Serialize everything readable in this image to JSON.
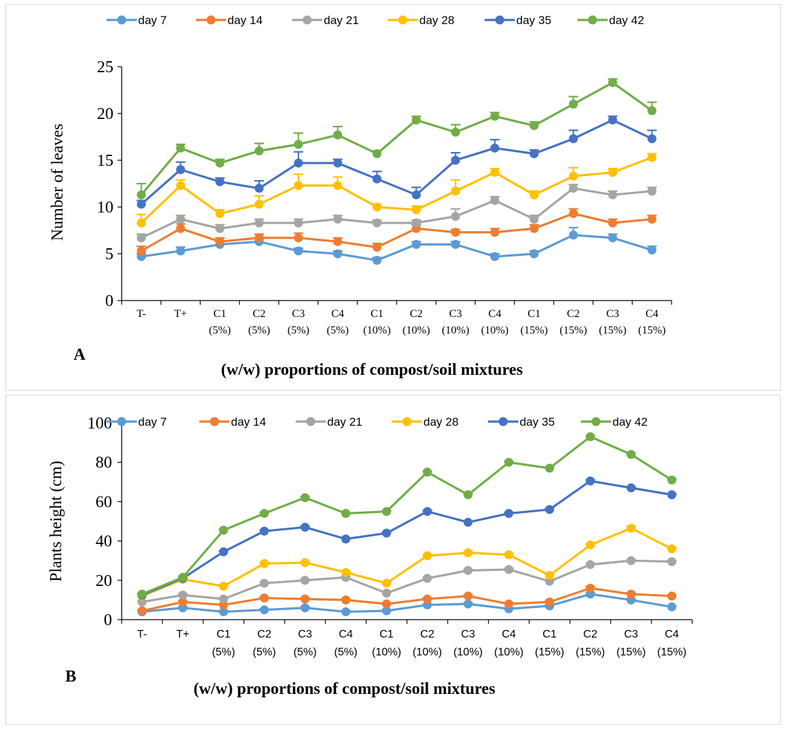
{
  "chart_data": [
    {
      "panel_label": "A",
      "type": "line",
      "title": "",
      "xlabel": "(w/w) proportions of compost/soil mixtures",
      "ylabel": "Number of leaves",
      "ylim": [
        0,
        25
      ],
      "yticks": [
        "0",
        "5",
        "10",
        "15",
        "20",
        "25"
      ],
      "categories": [
        "T-",
        "T+",
        "C1\n(5%)",
        "C2\n(5%)",
        "C3\n(5%)",
        "C4\n(5%)",
        "C1\n(10%)",
        "C2\n(10%)",
        "C3\n(10%)",
        "C4\n(10%)",
        "C1\n(15%)",
        "C2\n(15%)",
        "C3\n(15%)",
        "C4\n(15%)"
      ],
      "legend_position": "top",
      "error_bars": true,
      "grid": false,
      "series": [
        {
          "name": "day 7",
          "color": "#5B9BD5",
          "values": [
            4.7,
            5.3,
            6.0,
            6.3,
            5.3,
            5.0,
            4.3,
            6.0,
            6.0,
            4.7,
            5.0,
            7.0,
            6.7,
            5.4
          ],
          "errors": [
            0.3,
            0.4,
            0.3,
            0.3,
            0.3,
            0.3,
            0.3,
            0.3,
            0.3,
            0.3,
            0.3,
            0.8,
            0.4,
            0.4
          ]
        },
        {
          "name": "day 14",
          "color": "#ED7D31",
          "values": [
            5.3,
            7.7,
            6.3,
            6.7,
            6.7,
            6.3,
            5.7,
            7.7,
            7.3,
            7.3,
            7.7,
            9.3,
            8.3,
            8.7
          ],
          "errors": [
            0.5,
            0.5,
            0.4,
            0.4,
            0.5,
            0.4,
            0.4,
            0.4,
            0.3,
            0.4,
            0.4,
            0.5,
            0.4,
            0.4
          ]
        },
        {
          "name": "day 21",
          "color": "#A5A5A5",
          "values": [
            6.7,
            8.7,
            7.7,
            8.3,
            8.3,
            8.7,
            8.3,
            8.3,
            9.0,
            10.7,
            8.7,
            12.0,
            11.3,
            11.7
          ],
          "errors": [
            0.4,
            0.4,
            0.4,
            0.4,
            0.4,
            0.4,
            0.3,
            0.3,
            0.8,
            0.4,
            0.4,
            0.4,
            0.4,
            0.4
          ]
        },
        {
          "name": "day 28",
          "color": "#FFC000",
          "values": [
            8.3,
            12.3,
            9.3,
            10.3,
            12.3,
            12.3,
            10.0,
            9.7,
            11.7,
            13.7,
            11.3,
            13.3,
            13.7,
            15.3
          ],
          "errors": [
            0.9,
            0.6,
            0.4,
            0.9,
            1.2,
            0.9,
            0.3,
            0.4,
            1.2,
            0.4,
            0.4,
            0.9,
            0.4,
            0.4
          ]
        },
        {
          "name": "day 35",
          "color": "#4472C4",
          "values": [
            10.3,
            14.0,
            12.7,
            12.0,
            14.7,
            14.7,
            13.0,
            11.3,
            15.0,
            16.3,
            15.7,
            17.3,
            19.3,
            17.3
          ],
          "errors": [
            0.4,
            0.8,
            0.4,
            0.8,
            1.2,
            0.4,
            0.8,
            0.8,
            0.8,
            0.9,
            0.4,
            0.9,
            0.4,
            0.9
          ]
        },
        {
          "name": "day 42",
          "color": "#70AD47",
          "values": [
            11.3,
            16.3,
            14.7,
            16.0,
            16.7,
            17.7,
            15.7,
            19.3,
            18.0,
            19.7,
            18.7,
            21.0,
            23.3,
            20.3
          ],
          "errors": [
            1.2,
            0.4,
            0.4,
            0.8,
            1.2,
            0.9,
            0.3,
            0.4,
            0.8,
            0.4,
            0.4,
            0.8,
            0.4,
            0.9
          ]
        }
      ]
    },
    {
      "panel_label": "B",
      "type": "line",
      "title": "",
      "xlabel": "(w/w) proportions of compost/soil mixtures",
      "ylabel": "Plants height (cm)",
      "ylim": [
        0,
        100
      ],
      "yticks": [
        "0",
        "20",
        "40",
        "60",
        "80",
        "100"
      ],
      "categories": [
        "T-",
        "T+",
        "C1\n(5%)",
        "C2\n(5%)",
        "C3\n(5%)",
        "C4\n(5%)",
        "C1\n(10%)",
        "C2\n(10%)",
        "C3\n(10%)",
        "C4\n(10%)",
        "C1\n(15%)",
        "C2\n(15%)",
        "C3\n(15%)",
        "C4\n(15%)"
      ],
      "legend_position": "top",
      "error_bars": true,
      "grid": false,
      "series": [
        {
          "name": "day 7",
          "color": "#5B9BD5",
          "values": [
            4,
            6,
            4,
            5,
            6,
            4,
            4.5,
            7.5,
            8,
            5.5,
            7,
            13,
            10,
            6.5
          ],
          "errors": [
            0.5,
            0.5,
            0.5,
            0.5,
            0.5,
            0.5,
            0.5,
            0.5,
            0.5,
            0.5,
            0.5,
            0.8,
            0.5,
            0.5
          ]
        },
        {
          "name": "day 14",
          "color": "#ED7D31",
          "values": [
            4.5,
            9,
            7.5,
            11,
            10.5,
            10,
            8,
            10.5,
            12,
            8,
            9,
            16,
            13,
            12
          ],
          "errors": [
            0.5,
            0.5,
            0.5,
            0.5,
            0.5,
            0.5,
            0.5,
            0.5,
            0.5,
            0.5,
            0.5,
            0.8,
            0.5,
            0.5
          ]
        },
        {
          "name": "day 21",
          "color": "#A5A5A5",
          "values": [
            9,
            12.5,
            10.5,
            18.5,
            20,
            21.5,
            13.5,
            21,
            25,
            25.5,
            19.5,
            28,
            30,
            29.5
          ],
          "errors": [
            0.5,
            0.5,
            0.5,
            0.5,
            0.5,
            0.5,
            0.5,
            0.5,
            0.5,
            0.5,
            0.5,
            0.5,
            0.5,
            0.5
          ]
        },
        {
          "name": "day 28",
          "color": "#FFC000",
          "values": [
            12,
            20.5,
            17,
            28.5,
            29,
            24,
            18.5,
            32.5,
            34,
            33,
            22.5,
            38,
            46.5,
            36
          ],
          "errors": [
            0.5,
            0.5,
            0.5,
            0.5,
            0.5,
            0.5,
            0.5,
            0.5,
            0.5,
            0.5,
            0.5,
            0.5,
            1.0,
            0.5
          ]
        },
        {
          "name": "day 35",
          "color": "#4472C4",
          "values": [
            12.5,
            21,
            34.5,
            45,
            47,
            41,
            44,
            55,
            49.5,
            54,
            56,
            70.5,
            67,
            63.5
          ],
          "errors": [
            0.5,
            0.5,
            0.5,
            0.5,
            0.5,
            0.5,
            0.5,
            0.5,
            0.5,
            0.5,
            0.5,
            0.5,
            0.5,
            0.5
          ]
        },
        {
          "name": "day 42",
          "color": "#70AD47",
          "values": [
            13,
            21.5,
            45.5,
            54,
            62,
            54,
            55,
            75,
            63.5,
            80,
            77,
            93,
            84,
            71
          ],
          "errors": [
            0.5,
            0.5,
            0.5,
            0.5,
            0.5,
            0.5,
            0.5,
            0.5,
            0.5,
            0.5,
            0.5,
            0.5,
            0.5,
            0.5
          ]
        }
      ]
    }
  ]
}
